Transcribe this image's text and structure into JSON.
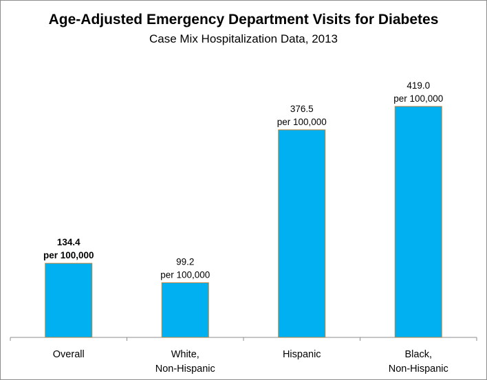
{
  "chart_data": {
    "type": "bar",
    "title": "Age-Adjusted Emergency Department Visits for Diabetes",
    "subtitle": "Case Mix Hospitalization Data, 2013",
    "xlabel": "",
    "ylabel": "",
    "ylim": [
      0,
      440
    ],
    "grid": false,
    "legend": "none",
    "bar_color": "#00b0f0",
    "bar_border_color": "#c0843c",
    "categories": [
      [
        "Overall"
      ],
      [
        "White,",
        "Non-Hispanic"
      ],
      [
        "Hispanic"
      ],
      [
        "Black,",
        "Non-Hispanic"
      ]
    ],
    "values": [
      134.4,
      99.2,
      376.5,
      419.0
    ],
    "data_labels": [
      {
        "value": "134.4",
        "unit": "per 100,000",
        "bold": true
      },
      {
        "value": "99.2",
        "unit": "per 100,000",
        "bold": false
      },
      {
        "value": "376.5",
        "unit": "per 100,000",
        "bold": false
      },
      {
        "value": "419.0",
        "unit": "per 100,000",
        "bold": false
      }
    ]
  }
}
